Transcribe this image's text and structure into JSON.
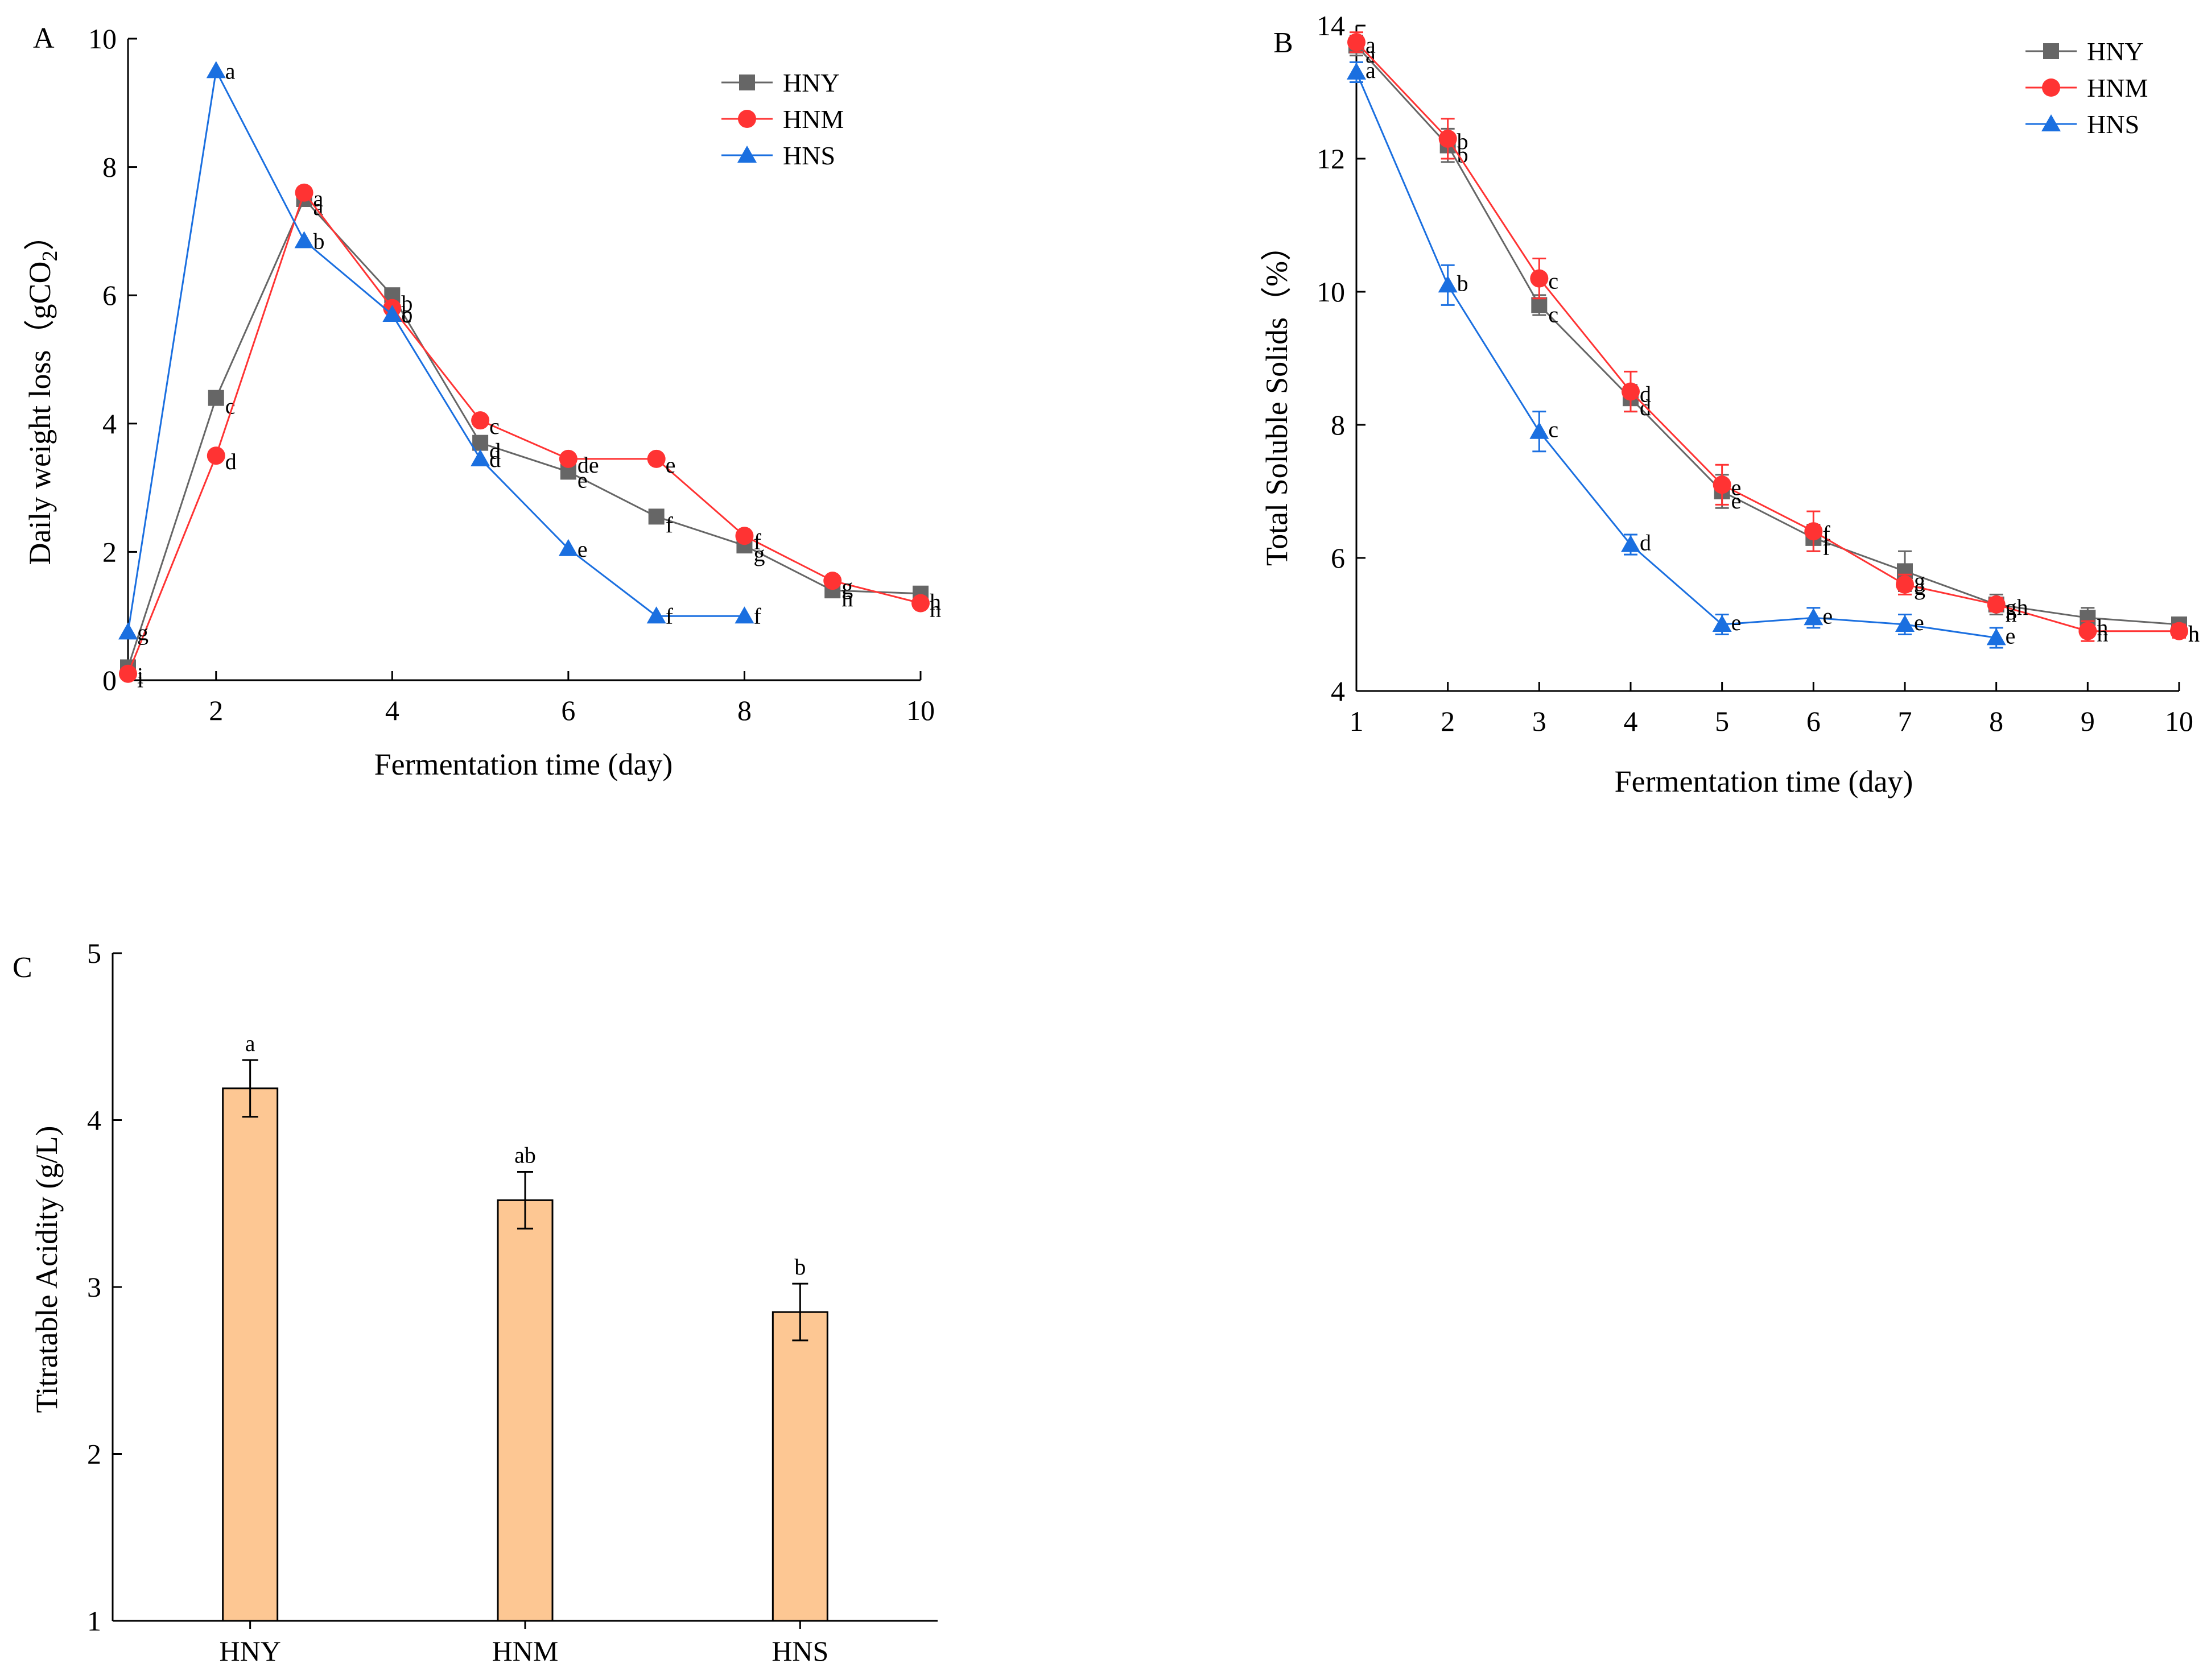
{
  "colors": {
    "HNY": "#666666",
    "HNM": "#ff3333",
    "HNS": "#1a6fe0",
    "bar_fill": "#fdc793",
    "axis": "#000000"
  },
  "chart_data": [
    {
      "panel": "A",
      "type": "line",
      "title": "",
      "xlabel": "Fermentation time (day)",
      "ylabel": "Daily weight loss（gCO",
      "ylabel_sub": "2",
      "ylabel_close": "）",
      "xlim": [
        1,
        10
      ],
      "ylim": [
        0,
        10
      ],
      "xticks": [
        "2",
        "4",
        "6",
        "8",
        "10"
      ],
      "yticks": [
        "0",
        "2",
        "4",
        "6",
        "8",
        "10"
      ],
      "legend": [
        "HNY",
        "HNM",
        "HNS"
      ],
      "legend_position": "top-right",
      "series": [
        {
          "name": "HNY",
          "marker": "square",
          "x": [
            1,
            2,
            3,
            4,
            5,
            6,
            7,
            8,
            9,
            10
          ],
          "y": [
            0.2,
            4.4,
            7.5,
            6.0,
            3.7,
            3.25,
            2.55,
            2.1,
            1.4,
            1.35
          ],
          "letters": [
            "i",
            "c",
            "a",
            "b",
            "d",
            "e",
            "f",
            "g",
            "h",
            "h"
          ]
        },
        {
          "name": "HNM",
          "marker": "circle",
          "x": [
            1,
            2,
            3,
            4,
            5,
            6,
            7,
            8,
            9,
            10
          ],
          "y": [
            0.1,
            3.5,
            7.6,
            5.8,
            4.05,
            3.45,
            3.45,
            2.25,
            1.55,
            1.2
          ],
          "letters": [
            "i",
            "d",
            "a",
            "b",
            "c",
            "de",
            "e",
            "f",
            "g",
            "h"
          ]
        },
        {
          "name": "HNS",
          "marker": "triangle",
          "x": [
            1,
            2,
            3,
            4,
            5,
            6,
            7,
            8
          ],
          "y": [
            0.75,
            9.5,
            6.85,
            5.7,
            3.45,
            2.05,
            1.0,
            1.0
          ],
          "letters": [
            "g",
            "a",
            "b",
            "c",
            "d",
            "e",
            "f",
            "f"
          ]
        }
      ]
    },
    {
      "panel": "B",
      "type": "line",
      "title": "",
      "xlabel": "Fermentation time (day)",
      "ylabel": "Total Soluble Solids（%）",
      "xlim": [
        1,
        10
      ],
      "ylim": [
        4,
        14
      ],
      "xticks": [
        "1",
        "2",
        "3",
        "4",
        "5",
        "6",
        "7",
        "8",
        "9",
        "10"
      ],
      "yticks": [
        "4",
        "6",
        "8",
        "10",
        "12",
        "14"
      ],
      "legend": [
        "HNY",
        "HNM",
        "HNS"
      ],
      "legend_position": "top-right",
      "series": [
        {
          "name": "HNY",
          "marker": "square",
          "x": [
            1,
            2,
            3,
            4,
            5,
            6,
            7,
            8,
            9,
            10
          ],
          "y": [
            13.7,
            12.2,
            9.8,
            8.4,
            7.0,
            6.3,
            5.8,
            5.3,
            5.1,
            5.0
          ],
          "err": [
            0.15,
            0.25,
            0.15,
            0.2,
            0.25,
            0.2,
            0.3,
            0.15,
            0.15,
            0.1
          ],
          "letters": [
            "a",
            "b",
            "c",
            "d",
            "e",
            "f",
            "g",
            "h",
            "h",
            "h"
          ]
        },
        {
          "name": "HNM",
          "marker": "circle",
          "x": [
            1,
            2,
            3,
            4,
            5,
            6,
            7,
            8,
            9,
            10
          ],
          "y": [
            13.75,
            12.3,
            10.2,
            8.5,
            7.1,
            6.4,
            5.6,
            5.3,
            4.9,
            4.9
          ],
          "err": [
            0.15,
            0.3,
            0.3,
            0.3,
            0.3,
            0.3,
            0.15,
            0.1,
            0.15,
            0.1
          ],
          "letters": [
            "a",
            "b",
            "c",
            "d",
            "e",
            "f",
            "g",
            "gh",
            "h",
            "h"
          ]
        },
        {
          "name": "HNS",
          "marker": "triangle",
          "x": [
            1,
            2,
            3,
            4,
            5,
            6,
            7,
            8
          ],
          "y": [
            13.3,
            10.1,
            7.9,
            6.2,
            5.0,
            5.1,
            5.0,
            4.8
          ],
          "err": [
            0.15,
            0.3,
            0.3,
            0.15,
            0.15,
            0.15,
            0.15,
            0.15
          ],
          "letters": [
            "a",
            "b",
            "c",
            "d",
            "e",
            "e",
            "e",
            "e"
          ]
        }
      ]
    },
    {
      "panel": "C",
      "type": "bar",
      "title": "",
      "xlabel": "",
      "ylabel": "Titratable Acidity (g/L)",
      "categories": [
        "HNY",
        "HNM",
        "HNS"
      ],
      "values": [
        4.19,
        3.52,
        2.85
      ],
      "err": [
        0.17,
        0.17,
        0.17
      ],
      "letters": [
        "a",
        "ab",
        "b"
      ],
      "ylim": [
        1,
        5
      ],
      "yticks": [
        "1",
        "2",
        "3",
        "4",
        "5"
      ]
    }
  ]
}
